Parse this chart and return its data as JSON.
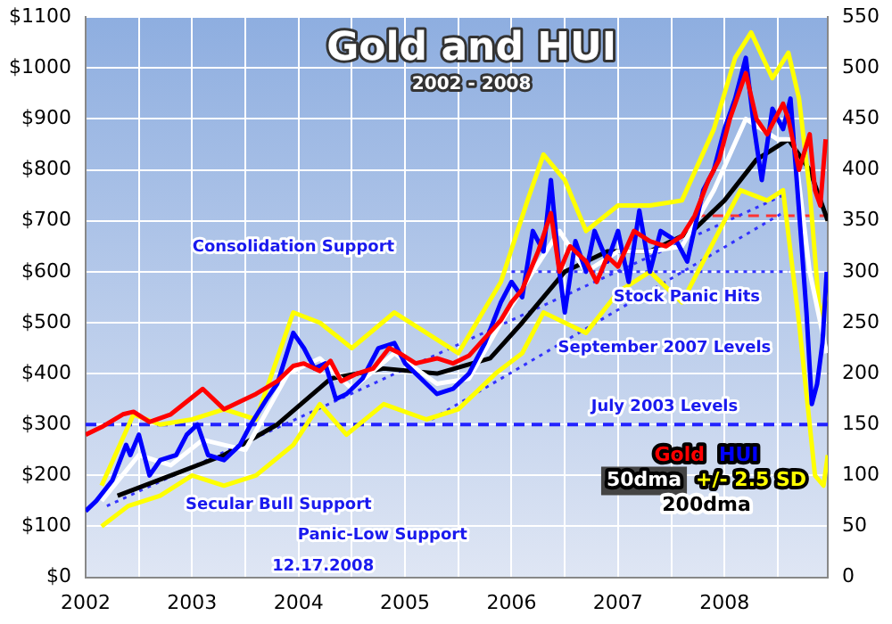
{
  "chart_data": {
    "type": "line",
    "title": "Gold and HUI",
    "subtitle": "2002 - 2008",
    "xlim": [
      2002,
      2008.97
    ],
    "xticks": [
      2002,
      {
        "value": 2002.5,
        "label": null
      },
      2003,
      {
        "value": 2003.5,
        "label": null
      },
      2004,
      {
        "value": 2004.5,
        "label": null
      },
      2005,
      {
        "value": 2005.5,
        "label": null
      },
      2006,
      {
        "value": 2006.5,
        "label": null
      },
      2007,
      {
        "value": 2007.5,
        "label": null
      },
      2008,
      {
        "value": 2008.5,
        "label": null
      }
    ],
    "ylim": [
      0,
      1100
    ],
    "yticks": [
      {
        "value": 0,
        "label": "$0"
      },
      {
        "value": 100,
        "label": "$100"
      },
      {
        "value": 200,
        "label": "$200"
      },
      {
        "value": 300,
        "label": "$300"
      },
      {
        "value": 400,
        "label": "$400"
      },
      {
        "value": 500,
        "label": "$500"
      },
      {
        "value": 600,
        "label": "$600"
      },
      {
        "value": 700,
        "label": "$700"
      },
      {
        "value": 800,
        "label": "$800"
      },
      {
        "value": 900,
        "label": "$900"
      },
      {
        "value": 1000,
        "label": "$1000"
      },
      {
        "value": 1100,
        "label": "$1100"
      }
    ],
    "y2lim": [
      0,
      550
    ],
    "y2ticks": [
      0,
      50,
      100,
      150,
      200,
      250,
      300,
      350,
      400,
      450,
      500,
      550
    ],
    "grid": true,
    "legend": "bottom right",
    "marker": "none",
    "series": [
      {
        "name": "Gold",
        "color": "#ff0000",
        "x": [
          2002.0,
          2002.15,
          2002.35,
          2002.45,
          2002.6,
          2002.8,
          2002.95,
          2003.1,
          2003.3,
          2003.45,
          2003.6,
          2003.8,
          2003.95,
          2004.05,
          2004.2,
          2004.3,
          2004.4,
          2004.55,
          2004.7,
          2004.85,
          2004.95,
          2005.1,
          2005.3,
          2005.45,
          2005.6,
          2005.75,
          2005.9,
          2006.0,
          2006.1,
          2006.25,
          2006.37,
          2006.45,
          2006.55,
          2006.7,
          2006.8,
          2006.9,
          2007.0,
          2007.15,
          2007.3,
          2007.45,
          2007.6,
          2007.72,
          2007.85,
          2007.95,
          2008.05,
          2008.2,
          2008.3,
          2008.4,
          2008.55,
          2008.6,
          2008.7,
          2008.8,
          2008.85,
          2008.9,
          2008.95
        ],
        "values": [
          280,
          295,
          320,
          325,
          305,
          320,
          345,
          370,
          330,
          345,
          360,
          385,
          415,
          420,
          405,
          425,
          385,
          400,
          410,
          450,
          440,
          420,
          430,
          420,
          435,
          470,
          505,
          540,
          565,
          640,
          715,
          600,
          650,
          620,
          580,
          630,
          610,
          680,
          660,
          650,
          670,
          710,
          780,
          820,
          900,
          990,
          900,
          870,
          930,
          900,
          800,
          870,
          760,
          730,
          860
        ]
      },
      {
        "name": "HUI",
        "color": "#0000ff",
        "axis": "y2",
        "x": [
          2002.0,
          2002.1,
          2002.25,
          2002.38,
          2002.42,
          2002.5,
          2002.6,
          2002.7,
          2002.85,
          2002.95,
          2003.05,
          2003.15,
          2003.3,
          2003.45,
          2003.55,
          2003.7,
          2003.8,
          2003.95,
          2004.05,
          2004.15,
          2004.25,
          2004.35,
          2004.45,
          2004.6,
          2004.75,
          2004.9,
          2005.0,
          2005.15,
          2005.3,
          2005.45,
          2005.6,
          2005.75,
          2005.9,
          2006.0,
          2006.1,
          2006.2,
          2006.3,
          2006.37,
          2006.45,
          2006.5,
          2006.6,
          2006.7,
          2006.78,
          2006.9,
          2007.0,
          2007.1,
          2007.2,
          2007.3,
          2007.4,
          2007.55,
          2007.65,
          2007.8,
          2007.9,
          2008.0,
          2008.1,
          2008.2,
          2008.28,
          2008.35,
          2008.45,
          2008.55,
          2008.62,
          2008.7,
          2008.77,
          2008.82,
          2008.87,
          2008.92,
          2008.96
        ],
        "values": [
          65,
          75,
          95,
          130,
          120,
          140,
          100,
          115,
          120,
          140,
          150,
          120,
          115,
          130,
          150,
          175,
          190,
          240,
          225,
          205,
          210,
          175,
          180,
          195,
          225,
          230,
          210,
          195,
          180,
          185,
          200,
          230,
          270,
          290,
          275,
          340,
          320,
          390,
          300,
          260,
          330,
          300,
          340,
          310,
          340,
          290,
          360,
          300,
          340,
          330,
          310,
          380,
          400,
          440,
          470,
          510,
          440,
          390,
          460,
          440,
          470,
          360,
          260,
          170,
          190,
          230,
          300
        ]
      },
      {
        "name": "50dma",
        "color": "#ffffff",
        "axis": "y2",
        "x": [
          2002.15,
          2002.5,
          2002.8,
          2003.1,
          2003.5,
          2003.9,
          2004.2,
          2004.5,
          2004.9,
          2005.3,
          2005.6,
          2005.9,
          2006.2,
          2006.45,
          2006.7,
          2007.0,
          2007.3,
          2007.6,
          2007.9,
          2008.2,
          2008.5,
          2008.65,
          2008.8,
          2008.96
        ],
        "values": [
          75,
          120,
          110,
          135,
          125,
          200,
          215,
          185,
          220,
          190,
          195,
          250,
          300,
          340,
          300,
          320,
          320,
          325,
          380,
          450,
          430,
          430,
          300,
          220
        ]
      },
      {
        "name": "+/- 2.5 SD",
        "color": "#ffff00",
        "axis": "y2",
        "x": [
          2002.15,
          2002.45,
          2002.7,
          2003.0,
          2003.3,
          2003.6,
          2003.95,
          2004.2,
          2004.5,
          2004.9,
          2005.2,
          2005.5,
          2005.9,
          2006.15,
          2006.3,
          2006.5,
          2006.7,
          2007.0,
          2007.3,
          2007.6,
          2007.9,
          2008.1,
          2008.25,
          2008.45,
          2008.6,
          2008.7,
          2008.8,
          2008.9,
          2008.96
        ],
        "values": [
          90,
          160,
          150,
          155,
          165,
          155,
          260,
          250,
          225,
          260,
          240,
          220,
          290,
          370,
          415,
          390,
          340,
          365,
          365,
          370,
          440,
          510,
          535,
          490,
          515,
          470,
          380,
          250,
          280
        ]
      },
      {
        "color": "#ffff00",
        "axis": "y2",
        "x": [
          2002.15,
          2002.4,
          2002.7,
          2003.0,
          2003.3,
          2003.6,
          2003.95,
          2004.2,
          2004.45,
          2004.8,
          2005.2,
          2005.5,
          2005.85,
          2006.1,
          2006.3,
          2006.5,
          2006.7,
          2007.0,
          2007.3,
          2007.6,
          2007.9,
          2008.15,
          2008.4,
          2008.55,
          2008.7,
          2008.85,
          2008.93,
          2008.97
        ],
        "values": [
          50,
          70,
          80,
          100,
          90,
          100,
          130,
          170,
          140,
          170,
          155,
          165,
          200,
          220,
          260,
          250,
          240,
          280,
          300,
          270,
          330,
          380,
          370,
          380,
          250,
          100,
          90,
          120
        ]
      },
      {
        "name": "200dma",
        "color": "#000000",
        "axis": "y2",
        "x": [
          2002.3,
          2002.8,
          2003.3,
          2003.8,
          2004.3,
          2004.8,
          2005.3,
          2005.8,
          2006.1,
          2006.5,
          2006.9,
          2007.3,
          2007.7,
          2008.0,
          2008.3,
          2008.6,
          2008.8,
          2008.97
        ],
        "values": [
          80,
          100,
          120,
          150,
          195,
          205,
          200,
          215,
          250,
          300,
          320,
          320,
          340,
          370,
          410,
          430,
          400,
          350
        ]
      },
      {
        "color": "#3333ff",
        "axis": "y2",
        "line_style": "dotted",
        "x": [
          2006.0,
          2008.6
        ],
        "values": [
          300,
          300
        ]
      },
      {
        "color": "#3333ff",
        "axis": "y2",
        "line_style": "dotted",
        "x": [
          2002.2,
          2008.55
        ],
        "values": [
          70,
          375
        ]
      },
      {
        "color": "#3333ff",
        "axis": "y2",
        "line_style": "dotted",
        "x": [
          2005.25,
          2008.55
        ],
        "values": [
          155,
          358
        ]
      },
      {
        "color": "#ff3333",
        "axis": "y2",
        "line_style": "dashed",
        "x": [
          2007.72,
          2008.95
        ],
        "values": [
          355,
          355
        ]
      }
    ],
    "ref_lines": [
      {
        "axis": "y2",
        "value": 150,
        "color": "#2222ff",
        "line_style": "dashed"
      }
    ],
    "annotations": [
      "Consolidation Support",
      "Stock Panic Hits",
      "September 2007 Levels",
      "July 2003 Levels",
      "Secular Bull Support",
      "Panic-Low Support",
      "12.17.2008"
    ]
  }
}
